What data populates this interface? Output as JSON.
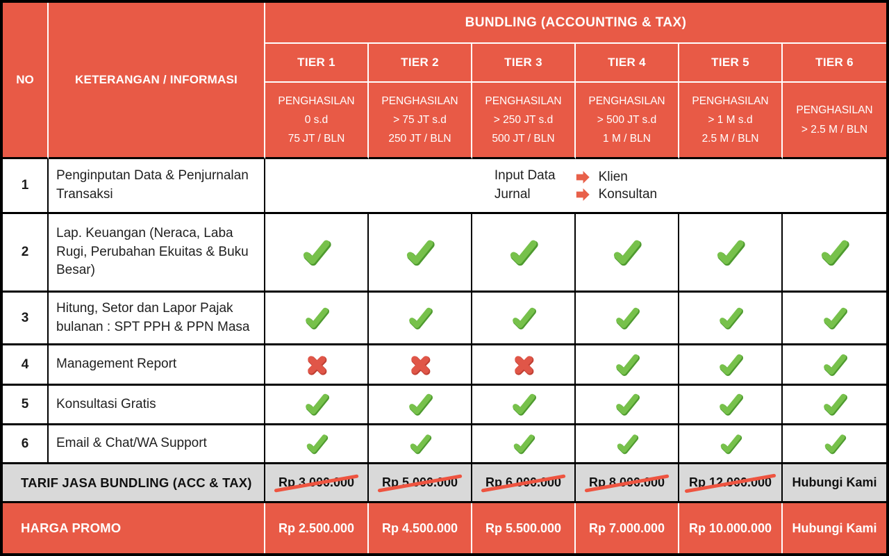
{
  "table": {
    "header": {
      "no_label": "NO",
      "keterangan_label": "KETERANGAN / INFORMASI",
      "bundling_title": "BUNDLING (ACCOUNTING & TAX)",
      "tiers": [
        {
          "name": "TIER 1",
          "income_lines": [
            "PENGHASILAN",
            "0 s.d",
            "75 JT / BLN"
          ]
        },
        {
          "name": "TIER 2",
          "income_lines": [
            "PENGHASILAN",
            "> 75 JT s.d",
            "250 JT / BLN"
          ]
        },
        {
          "name": "TIER 3",
          "income_lines": [
            "PENGHASILAN",
            "> 250 JT s.d",
            "500 JT / BLN"
          ]
        },
        {
          "name": "TIER 4",
          "income_lines": [
            "PENGHASILAN",
            "> 500 JT s.d",
            "1 M / BLN"
          ]
        },
        {
          "name": "TIER 5",
          "income_lines": [
            "PENGHASILAN",
            "> 1 M s.d",
            "2.5 M / BLN"
          ]
        },
        {
          "name": "TIER 6",
          "income_lines": [
            "PENGHASILAN",
            "> 2.5 M / BLN",
            ""
          ]
        }
      ]
    },
    "feature_rows": [
      {
        "no": "1",
        "label": "Penginputan Data & Penjurnalan Transaksi",
        "marks": []
      },
      {
        "no": "2",
        "label": "Lap. Keuangan (Neraca, Laba Rugi, Perubahan Ekuitas & Buku Besar)",
        "marks": [
          "check",
          "check",
          "check",
          "check",
          "check",
          "check"
        ]
      },
      {
        "no": "3",
        "label": "Hitung, Setor dan Lapor Pajak bulanan : SPT PPH & PPN Masa",
        "marks": [
          "check",
          "check",
          "check",
          "check",
          "check",
          "check"
        ]
      },
      {
        "no": "4",
        "label": "Management Report",
        "marks": [
          "cross",
          "cross",
          "cross",
          "check",
          "check",
          "check"
        ]
      },
      {
        "no": "5",
        "label": "Konsultasi Gratis",
        "marks": [
          "check",
          "check",
          "check",
          "check",
          "check",
          "check"
        ]
      },
      {
        "no": "6",
        "label": "Email & Chat/WA Support",
        "marks": [
          "check",
          "check",
          "check",
          "check",
          "check",
          "check"
        ]
      }
    ],
    "note": {
      "line1": "Input Data",
      "line2": "Jurnal",
      "targets": [
        "Klien",
        "Konsultan"
      ]
    },
    "tarif_row": {
      "label": "TARIF JASA BUNDLING (ACC & TAX)",
      "prices": [
        "Rp 3.000.000",
        "Rp 5.000.000",
        "Rp 6.000.000",
        "Rp 8.000.000",
        "Rp 12.000.000",
        "Hubungi Kami"
      ]
    },
    "promo_row": {
      "label": "HARGA PROMO",
      "prices": [
        "Rp 2.500.000",
        "Rp 4.500.000",
        "Rp 5.500.000",
        "Rp 7.000.000",
        "Rp 10.000.000",
        "Hubungi Kami"
      ]
    }
  },
  "colors": {
    "accent_red": "#E85A46",
    "gray_row": "#D9D9D9",
    "check_green": "#77C14B",
    "cross_red": "#E05648",
    "strike_red": "#EE5440"
  }
}
